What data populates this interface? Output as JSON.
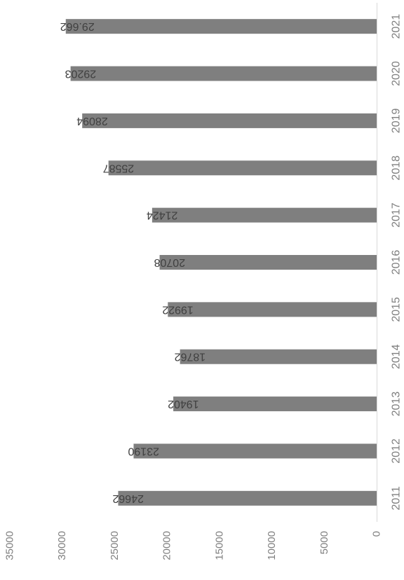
{
  "chart_data": {
    "type": "bar",
    "orientation": "rotated-180",
    "categories": [
      "2011",
      "2012",
      "2013",
      "2014",
      "2015",
      "2016",
      "2017",
      "2018",
      "2019",
      "2020",
      "2021"
    ],
    "values": [
      24662,
      23190,
      19402,
      18762,
      19922,
      20708,
      21424,
      25587,
      28094,
      29203,
      29662
    ],
    "data_labels": [
      "24662",
      "23190",
      "19402",
      "18762",
      "19922",
      "20708",
      "21424",
      "25587",
      "28094",
      "29203",
      "29.662"
    ],
    "ticks": [
      0,
      5000,
      10000,
      15000,
      20000,
      25000,
      30000,
      35000
    ],
    "tick_labels": [
      "0",
      "5000",
      "10000",
      "15000",
      "20000",
      "25000",
      "30000",
      "35000"
    ],
    "ylim": [
      0,
      35000
    ],
    "title": "",
    "xlabel": "",
    "ylabel": "",
    "grid": false,
    "bar_color": "#7f7f7f"
  }
}
